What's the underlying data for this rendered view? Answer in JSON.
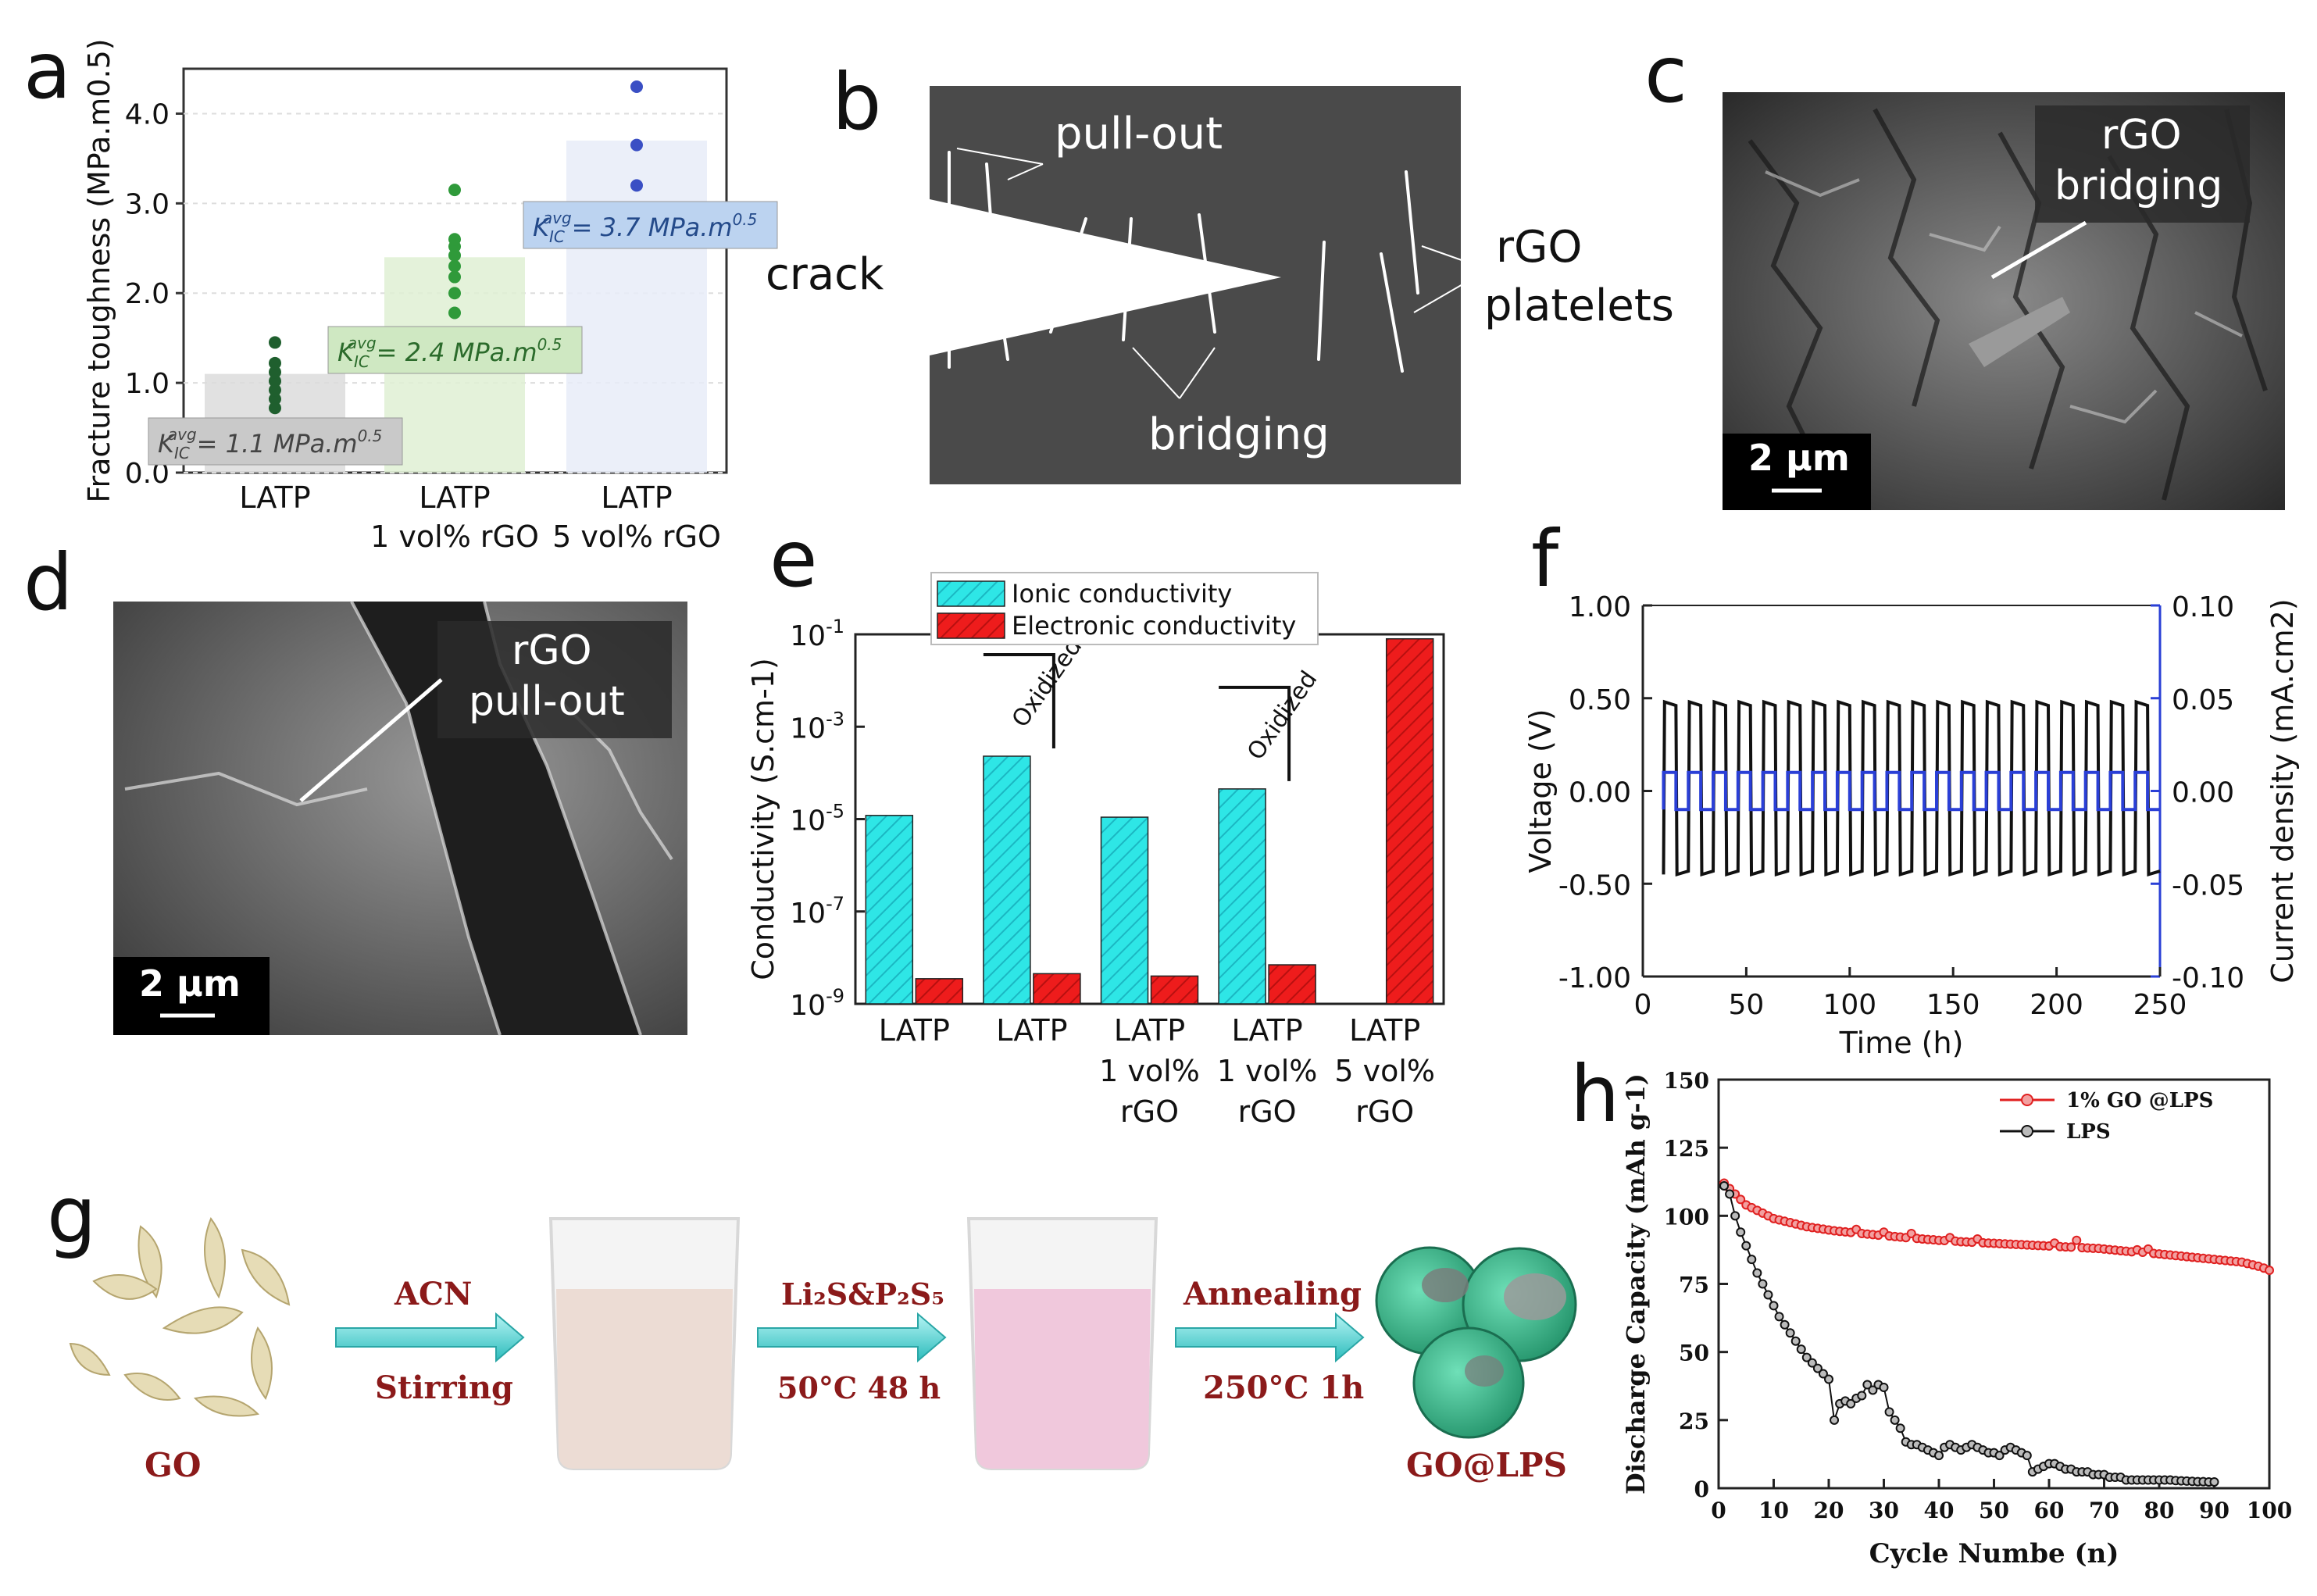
{
  "panel_letters": [
    "a",
    "b",
    "c",
    "d",
    "e",
    "f",
    "g",
    "h"
  ],
  "chart_data": [
    {
      "panel": "a",
      "type": "scatter",
      "ylabel": "Fracture toughness (MPa.m0.5)",
      "ylim": [
        0,
        4.5
      ],
      "yticks": [
        "0.0",
        "1.0",
        "2.0",
        "3.0",
        "4.0"
      ],
      "categories": [
        "LATP",
        "LATP\n1 vol% rGO",
        "LATP\n5 vol% rGO"
      ],
      "category_lines": [
        [
          "LATP"
        ],
        [
          "LATP",
          "1 vol% rGO"
        ],
        [
          "LATP",
          "5 vol% rGO"
        ]
      ],
      "series": [
        {
          "name": "LATP",
          "values": [
            0.72,
            0.82,
            0.92,
            1.02,
            1.12,
            1.22,
            1.45
          ],
          "avg": 1.1,
          "color": "#1f5f2e"
        },
        {
          "name": "LATP 1 vol% rGO",
          "values": [
            1.78,
            2.0,
            2.18,
            2.3,
            2.42,
            2.52,
            2.6,
            3.15
          ],
          "avg": 2.4,
          "color": "#2f9a3a"
        },
        {
          "name": "LATP 5 vol% rGO",
          "values": [
            3.2,
            3.65,
            4.3
          ],
          "avg": 3.7,
          "color": "#3a4fc4"
        }
      ],
      "annotations": [
        {
          "prefix": "K",
          "sub": "IC",
          "sup": "avg",
          "text": "= 1.1 MPa.m",
          "exp": "0.5"
        },
        {
          "prefix": "K",
          "sub": "IC",
          "sup": "avg",
          "text": "= 2.4 MPa.m",
          "exp": "0.5"
        },
        {
          "prefix": "K",
          "sub": "IC",
          "sup": "avg",
          "text": "= 3.7 MPa.m",
          "exp": "0.5"
        }
      ]
    },
    {
      "panel": "e",
      "type": "bar",
      "ylabel": "Conductivity (S.cm-1)",
      "yscale": "log",
      "ylim_exp": [
        -9,
        -1
      ],
      "yticks_exp": [
        -9,
        -7,
        -5,
        -3,
        -1
      ],
      "categories": [
        "LATP",
        "LATP",
        "LATP\n1 vol%\nrGO",
        "LATP\n1 vol%\nrGO",
        "LATP\n5 vol%\nrGO"
      ],
      "category_lines": [
        [
          "LATP"
        ],
        [
          "LATP"
        ],
        [
          "LATP",
          "1 vol%",
          "rGO"
        ],
        [
          "LATP",
          "1 vol%",
          "rGO"
        ],
        [
          "LATP",
          "5 vol%",
          "rGO"
        ]
      ],
      "series": [
        {
          "name": "Ionic conductivity",
          "color": "#2ee6e6",
          "values": [
            1.2e-05,
            0.00023,
            1.1e-05,
            4.5e-05,
            null
          ]
        },
        {
          "name": "Electronic conductivity",
          "color": "#ee1c1c",
          "values": [
            3.5e-09,
            4.5e-09,
            4e-09,
            7e-09,
            0.08
          ]
        }
      ],
      "annotations": [
        "Oxidized",
        "Oxidized"
      ]
    },
    {
      "panel": "f",
      "type": "line",
      "xlabel": "Time (h)",
      "ylabel": "Voltage (V)",
      "y2label": "Current density (mA.cm2)",
      "xlim": [
        0,
        250
      ],
      "ylim": [
        -1.0,
        1.0
      ],
      "y2lim": [
        -0.1,
        0.1
      ],
      "xticks": [
        "0",
        "50",
        "100",
        "150",
        "200",
        "250"
      ],
      "yticks": [
        "-1.00",
        "-0.50",
        "0.00",
        "0.50",
        "1.00"
      ],
      "y2ticks": [
        "-0.10",
        "-0.05",
        "0.00",
        "0.05",
        "0.10"
      ],
      "series": [
        {
          "name": "Voltage",
          "color": "#111111",
          "cycles": 20,
          "start": 10,
          "end": 250,
          "high": 0.48,
          "low": -0.45
        },
        {
          "name": "Current density",
          "color": "#2a3fd6",
          "cycles": 20,
          "start": 10,
          "end": 250,
          "high": 0.01,
          "low": -0.01
        }
      ]
    },
    {
      "panel": "h",
      "type": "line",
      "xlabel": "Cycle Numbe (n)",
      "ylabel": "Discharge Capacity (mAh g-1)",
      "xlim": [
        0,
        100
      ],
      "ylim": [
        0,
        150
      ],
      "xticks": [
        "0",
        "10",
        "20",
        "30",
        "40",
        "50",
        "60",
        "70",
        "80",
        "90",
        "100"
      ],
      "yticks": [
        "0",
        "25",
        "50",
        "75",
        "100",
        "125",
        "150"
      ],
      "series": [
        {
          "name": "1% GO @LPS",
          "color": "#e02020",
          "x_start": 1,
          "x_end": 100,
          "values": [
            112,
            110,
            108,
            106,
            104,
            103,
            102,
            101,
            100,
            99,
            98.5,
            98,
            97.5,
            97,
            96.5,
            96,
            95.7,
            95.4,
            95.1,
            94.8,
            94.5,
            94.3,
            94.1,
            93.9,
            95,
            93.5,
            93.3,
            93.1,
            92.9,
            94,
            92.6,
            92.4,
            92.2,
            92,
            93.5,
            91.7,
            91.5,
            91.3,
            91.2,
            91,
            90.9,
            92,
            90.7,
            90.5,
            90.4,
            90.3,
            91.5,
            90.1,
            90,
            89.9,
            89.8,
            89.7,
            89.6,
            89.5,
            89.4,
            89.3,
            89.2,
            89.1,
            89,
            88.9,
            90,
            88.7,
            88.6,
            88.5,
            91,
            88.3,
            88.2,
            88.1,
            88,
            87.8,
            87.6,
            87.4,
            87.2,
            87,
            86.8,
            87.5,
            86.6,
            87.8,
            86.2,
            86,
            85.8,
            85.6,
            85.4,
            85.2,
            85,
            84.8,
            84.6,
            84.4,
            84.2,
            84,
            83.8,
            83.6,
            83.4,
            83.2,
            83,
            82.5,
            82,
            81.5,
            80.8,
            80
          ]
        },
        {
          "name": "LPS",
          "color": "#111111",
          "x_start": 1,
          "x_end": 90,
          "values": [
            111,
            108,
            100,
            94,
            89,
            84,
            79,
            75,
            71,
            67,
            63,
            60,
            57,
            54,
            51,
            48,
            46,
            44,
            42,
            40,
            25,
            31,
            32,
            31,
            33,
            34,
            38,
            36,
            38,
            37,
            28,
            25,
            22,
            17,
            16,
            16,
            15,
            14,
            13,
            12,
            15,
            16,
            15,
            14,
            15,
            16,
            15,
            14,
            13,
            13,
            12,
            14,
            15,
            14,
            13,
            12,
            6,
            7,
            8,
            9,
            9,
            8,
            7,
            7,
            6,
            6,
            6,
            5,
            5,
            5,
            4,
            4,
            4,
            3,
            3,
            3,
            3,
            3,
            3,
            3,
            3,
            3,
            2.8,
            2.7,
            2.6,
            2.5,
            2.4,
            2.4,
            2.3,
            2.3
          ]
        }
      ]
    }
  ],
  "panel_b": {
    "labels": {
      "pullout": "pull-out",
      "crack": "crack",
      "platelets_line1": "rGO",
      "platelets_line2": "platelets",
      "bridging": "bridging"
    }
  },
  "panel_c": {
    "label_line1": "rGO",
    "label_line2": "bridging",
    "scale": "2 µm"
  },
  "panel_d": {
    "label_line1": "rGO",
    "label_line2": "pull-out",
    "scale": "2 µm"
  },
  "panel_g": {
    "go_label": "GO",
    "step1_top": "ACN",
    "step1_bottom": "Stirring",
    "step2_top": "Li₂S&P₂S₅",
    "step2_bottom": "50°C 48 h",
    "step3_top": "Annealing",
    "step3_bottom": "250°C 1h",
    "product_label": "GO@LPS",
    "colors": {
      "arrow": "#4fd6d6",
      "text": "#8b1a1a",
      "beaker1": "#efe0d8",
      "beaker2": "#f2cde0",
      "sphere": "#2fb083"
    }
  }
}
